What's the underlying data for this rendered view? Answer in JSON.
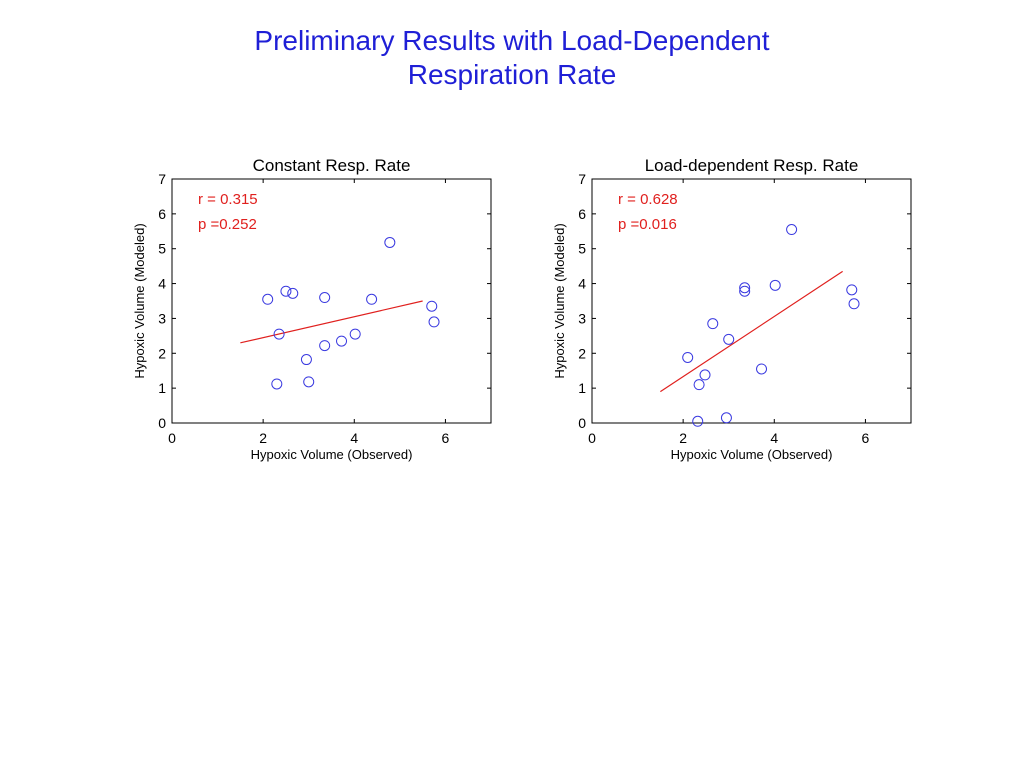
{
  "slide": {
    "title_line1": "Preliminary Results with Load-Dependent",
    "title_line2": "Respiration Rate"
  },
  "colors": {
    "title": "#1f1fd6",
    "points": "#3a3ae0",
    "fit": "#e0201e",
    "stats": "#e0201e"
  },
  "chart_data": [
    {
      "type": "scatter",
      "title": "Constant Resp. Rate",
      "xlabel": "Hypoxic Volume (Observed)",
      "ylabel": "Hypoxic Volume (Modeled)",
      "xlim": [
        0,
        7
      ],
      "ylim": [
        0,
        7
      ],
      "xticks": [
        0,
        2,
        4,
        6
      ],
      "yticks": [
        0,
        1,
        2,
        3,
        4,
        5,
        6,
        7
      ],
      "stats": {
        "r": "r = 0.315",
        "p": "p =0.252"
      },
      "points": [
        {
          "x": 2.1,
          "y": 3.55
        },
        {
          "x": 2.5,
          "y": 3.78
        },
        {
          "x": 2.65,
          "y": 3.72
        },
        {
          "x": 2.35,
          "y": 2.55
        },
        {
          "x": 2.3,
          "y": 1.12
        },
        {
          "x": 2.95,
          "y": 1.82
        },
        {
          "x": 3.0,
          "y": 1.18
        },
        {
          "x": 3.35,
          "y": 3.6
        },
        {
          "x": 3.35,
          "y": 2.22
        },
        {
          "x": 3.72,
          "y": 2.35
        },
        {
          "x": 4.02,
          "y": 2.55
        },
        {
          "x": 4.38,
          "y": 3.55
        },
        {
          "x": 4.78,
          "y": 5.18
        },
        {
          "x": 5.7,
          "y": 3.35
        },
        {
          "x": 5.75,
          "y": 2.9
        }
      ],
      "fit_line": [
        {
          "x": 1.5,
          "y": 2.3
        },
        {
          "x": 5.5,
          "y": 3.5
        }
      ]
    },
    {
      "type": "scatter",
      "title": "Load-dependent Resp. Rate",
      "xlabel": "Hypoxic Volume (Observed)",
      "ylabel": "Hypoxic Volume (Modeled)",
      "xlim": [
        0,
        7
      ],
      "ylim": [
        0,
        7
      ],
      "xticks": [
        0,
        2,
        4,
        6
      ],
      "yticks": [
        0,
        1,
        2,
        3,
        4,
        5,
        6,
        7
      ],
      "stats": {
        "r": "r = 0.628",
        "p": "p =0.016"
      },
      "points": [
        {
          "x": 2.1,
          "y": 1.88
        },
        {
          "x": 2.35,
          "y": 1.1
        },
        {
          "x": 2.32,
          "y": 0.05
        },
        {
          "x": 2.48,
          "y": 1.38
        },
        {
          "x": 2.65,
          "y": 2.85
        },
        {
          "x": 2.95,
          "y": 0.15
        },
        {
          "x": 3.0,
          "y": 2.4
        },
        {
          "x": 3.35,
          "y": 3.88
        },
        {
          "x": 3.35,
          "y": 3.78
        },
        {
          "x": 3.72,
          "y": 1.55
        },
        {
          "x": 4.02,
          "y": 3.95
        },
        {
          "x": 4.38,
          "y": 5.55
        },
        {
          "x": 5.7,
          "y": 3.82
        },
        {
          "x": 5.75,
          "y": 3.42
        }
      ],
      "fit_line": [
        {
          "x": 1.5,
          "y": 0.9
        },
        {
          "x": 5.5,
          "y": 4.35
        }
      ]
    }
  ]
}
